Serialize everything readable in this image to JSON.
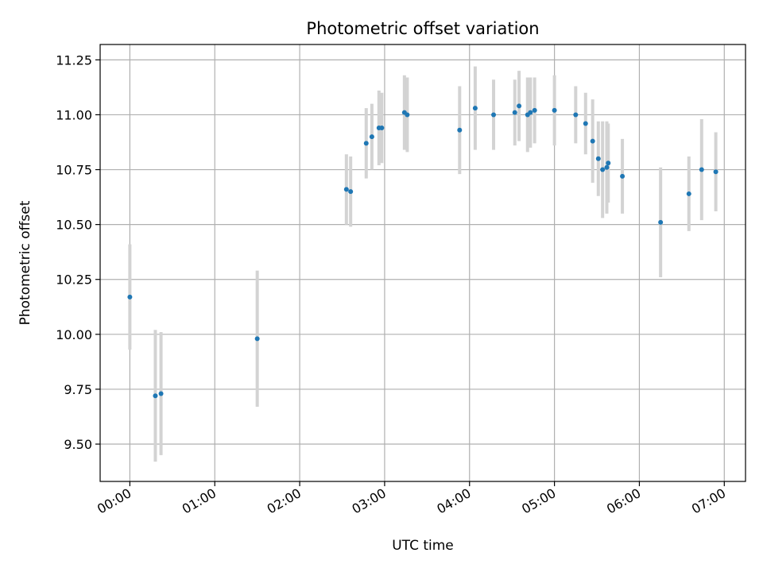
{
  "chart_data": {
    "type": "scatter",
    "title": "Photometric offset variation",
    "xlabel": "UTC time",
    "ylabel": "Photometric offset",
    "x_unit": "UTC time (HH:MM)",
    "xlim": [
      "-00:21",
      "07:15"
    ],
    "ylim": [
      9.33,
      11.32
    ],
    "xticks": [
      "00:00",
      "01:00",
      "02:00",
      "03:00",
      "04:00",
      "05:00",
      "06:00",
      "07:00"
    ],
    "yticks": [
      "9.50",
      "9.75",
      "10.00",
      "10.25",
      "10.50",
      "10.75",
      "11.00",
      "11.25"
    ],
    "grid": true,
    "legend": "none",
    "colors": {
      "points": "#1f77b4",
      "error_bars": "#d3d3d3",
      "grid": "#b0b0b0"
    },
    "points": [
      {
        "x": "00:00",
        "y": 10.17,
        "yerr": 0.24
      },
      {
        "x": "00:18",
        "y": 9.72,
        "yerr": 0.3
      },
      {
        "x": "00:22",
        "y": 9.73,
        "yerr": 0.28
      },
      {
        "x": "01:30",
        "y": 9.98,
        "yerr": 0.31
      },
      {
        "x": "02:33",
        "y": 10.66,
        "yerr": 0.16
      },
      {
        "x": "02:36",
        "y": 10.65,
        "yerr": 0.16
      },
      {
        "x": "02:47",
        "y": 10.87,
        "yerr": 0.16
      },
      {
        "x": "02:51",
        "y": 10.9,
        "yerr": 0.15
      },
      {
        "x": "02:56",
        "y": 10.94,
        "yerr": 0.17
      },
      {
        "x": "02:58",
        "y": 10.94,
        "yerr": 0.16
      },
      {
        "x": "03:14",
        "y": 11.01,
        "yerr": 0.17
      },
      {
        "x": "03:16",
        "y": 11.0,
        "yerr": 0.17
      },
      {
        "x": "03:53",
        "y": 10.93,
        "yerr": 0.2
      },
      {
        "x": "04:04",
        "y": 11.03,
        "yerr": 0.19
      },
      {
        "x": "04:17",
        "y": 11.0,
        "yerr": 0.16
      },
      {
        "x": "04:32",
        "y": 11.01,
        "yerr": 0.15
      },
      {
        "x": "04:35",
        "y": 11.04,
        "yerr": 0.16
      },
      {
        "x": "04:41",
        "y": 11.0,
        "yerr": 0.17
      },
      {
        "x": "04:43",
        "y": 11.01,
        "yerr": 0.16
      },
      {
        "x": "04:46",
        "y": 11.02,
        "yerr": 0.15
      },
      {
        "x": "05:00",
        "y": 11.02,
        "yerr": 0.16
      },
      {
        "x": "05:15",
        "y": 11.0,
        "yerr": 0.13
      },
      {
        "x": "05:22",
        "y": 10.96,
        "yerr": 0.14
      },
      {
        "x": "05:27",
        "y": 10.88,
        "yerr": 0.19
      },
      {
        "x": "05:31",
        "y": 10.8,
        "yerr": 0.17
      },
      {
        "x": "05:34",
        "y": 10.75,
        "yerr": 0.22
      },
      {
        "x": "05:37",
        "y": 10.76,
        "yerr": 0.21
      },
      {
        "x": "05:38",
        "y": 10.78,
        "yerr": 0.18
      },
      {
        "x": "05:48",
        "y": 10.72,
        "yerr": 0.17
      },
      {
        "x": "06:15",
        "y": 10.51,
        "yerr": 0.25
      },
      {
        "x": "06:35",
        "y": 10.64,
        "yerr": 0.17
      },
      {
        "x": "06:44",
        "y": 10.75,
        "yerr": 0.23
      },
      {
        "x": "06:54",
        "y": 10.74,
        "yerr": 0.18
      }
    ]
  }
}
